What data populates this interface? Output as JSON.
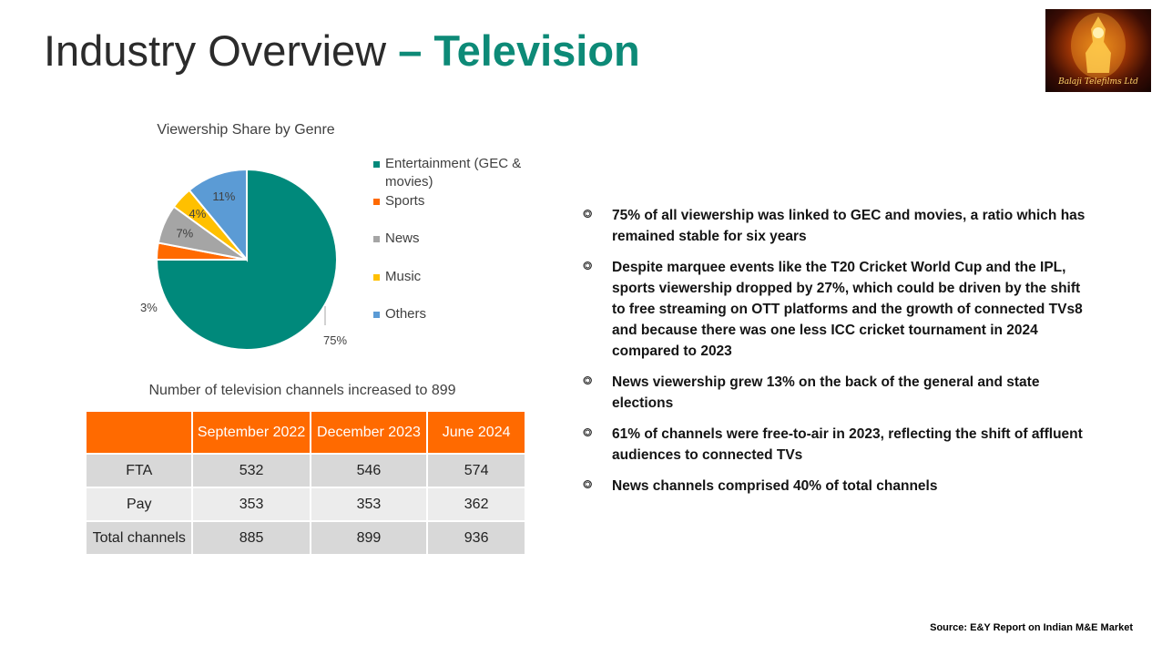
{
  "header": {
    "title_main": "Industry Overview ",
    "title_accent": "– Television",
    "logo_text": "Balaji Telefilms Ltd"
  },
  "chart_data": {
    "type": "pie",
    "title": "Viewership Share by Genre",
    "categories": [
      "Entertainment (GEC & movies)",
      "Sports",
      "News",
      "Music",
      "Others"
    ],
    "values": [
      75,
      3,
      7,
      4,
      11
    ],
    "labels": [
      "75%",
      "3%",
      "7%",
      "4%",
      "11%"
    ],
    "colors": [
      "#00897b",
      "#ff6a00",
      "#a5a5a5",
      "#ffc000",
      "#5b9bd5"
    ],
    "legend_position": "right"
  },
  "table": {
    "caption": "Number of television channels increased to 899",
    "headers": [
      "",
      "September 2022",
      "December 2023",
      "June 2024"
    ],
    "rows": [
      {
        "label": "FTA",
        "values": [
          "532",
          "546",
          "574"
        ]
      },
      {
        "label": "Pay",
        "values": [
          "353",
          "353",
          "362"
        ]
      },
      {
        "label": "Total channels",
        "values": [
          "885",
          "899",
          "936"
        ]
      }
    ]
  },
  "bullets": {
    "icon": "bullet-icon",
    "items": [
      "75% of all viewership was linked to GEC and movies, a ratio which has remained stable for six years",
      "Despite marquee events like the T20 Cricket World Cup and the IPL, sports viewership dropped by 27%, which could be driven by the shift to free streaming on OTT platforms and the growth of connected TVs8 and because there was one less ICC cricket tournament in 2024 compared to 2023",
      "News viewership grew 13% on the back of the general and state elections",
      "61% of channels were free-to-air in 2023, reflecting the shift of affluent audiences to connected TVs",
      "News channels comprised 40% of total channels"
    ]
  },
  "footer": {
    "source": "Source: E&Y Report on Indian M&E Market"
  }
}
